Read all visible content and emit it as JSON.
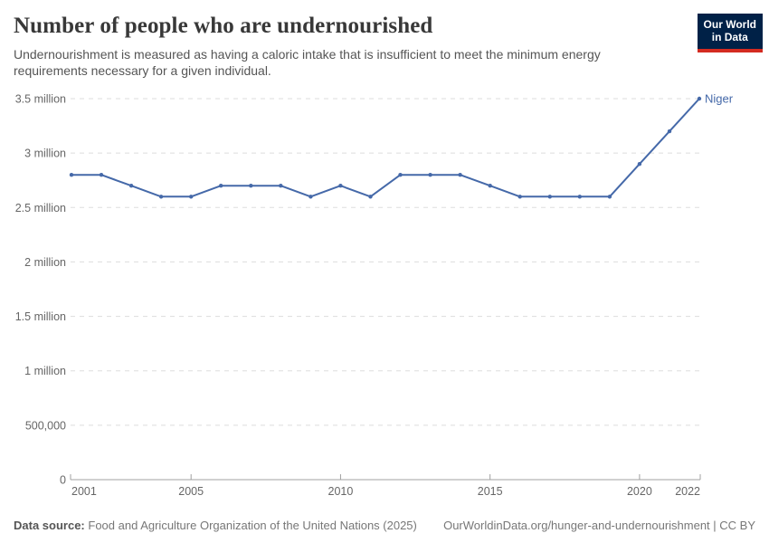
{
  "header": {
    "title": "Number of people who are undernourished",
    "subtitle": "Undernourishment is measured as having a caloric intake that is insufficient to meet the minimum energy requirements necessary for a given individual.",
    "logo": {
      "line1": "Our World",
      "line2": "in Data",
      "bg_color": "#002147",
      "accent_color": "#d42b21"
    }
  },
  "chart_data": {
    "type": "line",
    "title": "Number of people who are undernourished",
    "xlabel": "",
    "ylabel": "",
    "x": [
      2001,
      2002,
      2003,
      2004,
      2005,
      2006,
      2007,
      2008,
      2009,
      2010,
      2011,
      2012,
      2013,
      2014,
      2015,
      2016,
      2017,
      2018,
      2019,
      2020,
      2021,
      2022
    ],
    "series": [
      {
        "name": "Niger",
        "color": "#4569a9",
        "values": [
          2800000,
          2800000,
          2700000,
          2600000,
          2600000,
          2700000,
          2700000,
          2700000,
          2600000,
          2700000,
          2600000,
          2800000,
          2800000,
          2800000,
          2700000,
          2600000,
          2600000,
          2600000,
          2600000,
          2900000,
          3200000,
          3500000
        ]
      }
    ],
    "xlim": [
      2001,
      2022
    ],
    "ylim": [
      0,
      3500000
    ],
    "x_ticks": [
      {
        "v": 2001,
        "label": "2001"
      },
      {
        "v": 2005,
        "label": "2005"
      },
      {
        "v": 2010,
        "label": "2010"
      },
      {
        "v": 2015,
        "label": "2015"
      },
      {
        "v": 2020,
        "label": "2020"
      },
      {
        "v": 2022,
        "label": "2022"
      }
    ],
    "y_ticks": [
      {
        "v": 0,
        "label": "0"
      },
      {
        "v": 500000,
        "label": "500,000"
      },
      {
        "v": 1000000,
        "label": "1 million"
      },
      {
        "v": 1500000,
        "label": "1.5 million"
      },
      {
        "v": 2000000,
        "label": "2 million"
      },
      {
        "v": 2500000,
        "label": "2.5 million"
      },
      {
        "v": 3000000,
        "label": "3 million"
      },
      {
        "v": 3500000,
        "label": "3.5 million"
      }
    ],
    "grid": "horizontal-dashed",
    "gridline_color": "#dddddd",
    "axis_color": "#a0a0a0",
    "tick_label_color": "#666666",
    "legend": "end-of-line-label"
  },
  "footer": {
    "source_label": "Data source:",
    "source_text": "Food and Agriculture Organization of the United Nations (2025)",
    "attribution": "OurWorldinData.org/hunger-and-undernourishment | CC BY"
  }
}
